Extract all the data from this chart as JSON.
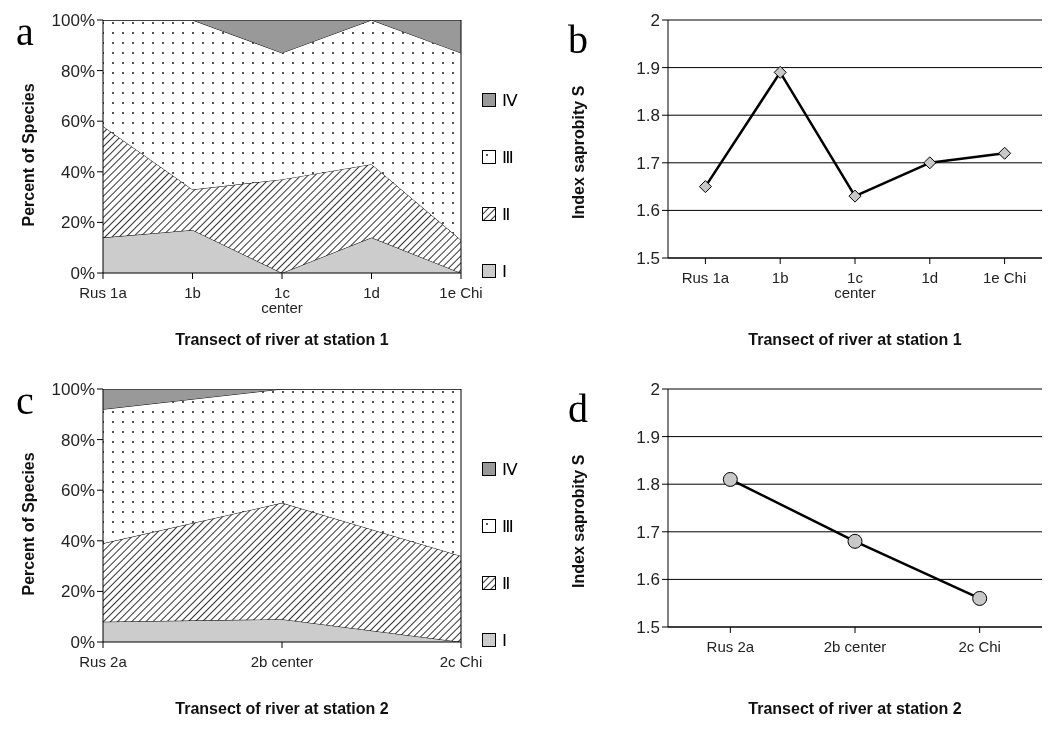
{
  "chart_data": [
    {
      "type": "area",
      "stacked": true,
      "annotations": [
        "a"
      ],
      "xlabel": "Transect of river at station 1",
      "ylabel": "Percent of Species",
      "categories": [
        "Rus 1a",
        "1b",
        "1c center",
        "1d",
        "1e Chi"
      ],
      "ylim": [
        0,
        100
      ],
      "yticks": [
        {
          "value": 0,
          "label": "0%"
        },
        {
          "value": 20,
          "label": "20%"
        },
        {
          "value": 40,
          "label": "40%"
        },
        {
          "value": 60,
          "label": "60%"
        },
        {
          "value": 80,
          "label": "80%"
        },
        {
          "value": 100,
          "label": "100%"
        }
      ],
      "legend": "right",
      "series": [
        {
          "name": "Ⅰ",
          "color": "#cccccc",
          "values": [
            14,
            17,
            0,
            14,
            0
          ]
        },
        {
          "name": "Ⅱ",
          "color": "#ffffff",
          "values": [
            44,
            16,
            37,
            29,
            13
          ]
        },
        {
          "name": "Ⅲ",
          "color": "#ffffff",
          "values": [
            42,
            67,
            50,
            57,
            74
          ]
        },
        {
          "name": "Ⅳ",
          "color": "#999999",
          "values": [
            0,
            0,
            13,
            0,
            13
          ]
        }
      ]
    },
    {
      "type": "line",
      "annotations": [
        "b"
      ],
      "xlabel": "Transect of river at station 1",
      "ylabel": "Index saprobity S",
      "categories": [
        "Rus 1a",
        "1b",
        "1c center",
        "1d",
        "1e Chi"
      ],
      "ylim": [
        1.5,
        2
      ],
      "yticks": [
        1.5,
        1.6,
        1.7,
        1.8,
        1.9,
        2
      ],
      "grid": "y",
      "marker": "diamond",
      "series": [
        {
          "color": "#000000",
          "values": [
            1.65,
            1.89,
            1.63,
            1.7,
            1.72
          ]
        }
      ]
    },
    {
      "type": "area",
      "stacked": true,
      "annotations": [
        "c"
      ],
      "xlabel": "Transect of river at station 2",
      "ylabel": "Percent of Species",
      "categories": [
        "Rus 2a",
        "2b center",
        "2c Chi"
      ],
      "ylim": [
        0,
        100
      ],
      "yticks": [
        {
          "value": 0,
          "label": "0%"
        },
        {
          "value": 20,
          "label": "20%"
        },
        {
          "value": 40,
          "label": "40%"
        },
        {
          "value": 60,
          "label": "60%"
        },
        {
          "value": 80,
          "label": "80%"
        },
        {
          "value": 100,
          "label": "100%"
        }
      ],
      "legend": "right",
      "series": [
        {
          "name": "Ⅰ",
          "color": "#cccccc",
          "values": [
            8,
            9,
            0
          ]
        },
        {
          "name": "Ⅱ",
          "color": "#ffffff",
          "values": [
            31,
            46,
            34
          ]
        },
        {
          "name": "Ⅲ",
          "color": "#ffffff",
          "values": [
            53,
            45,
            66
          ]
        },
        {
          "name": "Ⅳ",
          "color": "#999999",
          "values": [
            8,
            0,
            0
          ]
        }
      ]
    },
    {
      "type": "line",
      "annotations": [
        "d"
      ],
      "xlabel": "Transect of river at station 2",
      "ylabel": "Index saprobity S",
      "categories": [
        "Rus 2a",
        "2b center",
        "2c Chi"
      ],
      "ylim": [
        1.5,
        2
      ],
      "yticks": [
        1.5,
        1.6,
        1.7,
        1.8,
        1.9,
        2
      ],
      "grid": "y",
      "marker": "circle",
      "series": [
        {
          "color": "#000000",
          "values": [
            1.81,
            1.68,
            1.56
          ]
        }
      ]
    }
  ]
}
